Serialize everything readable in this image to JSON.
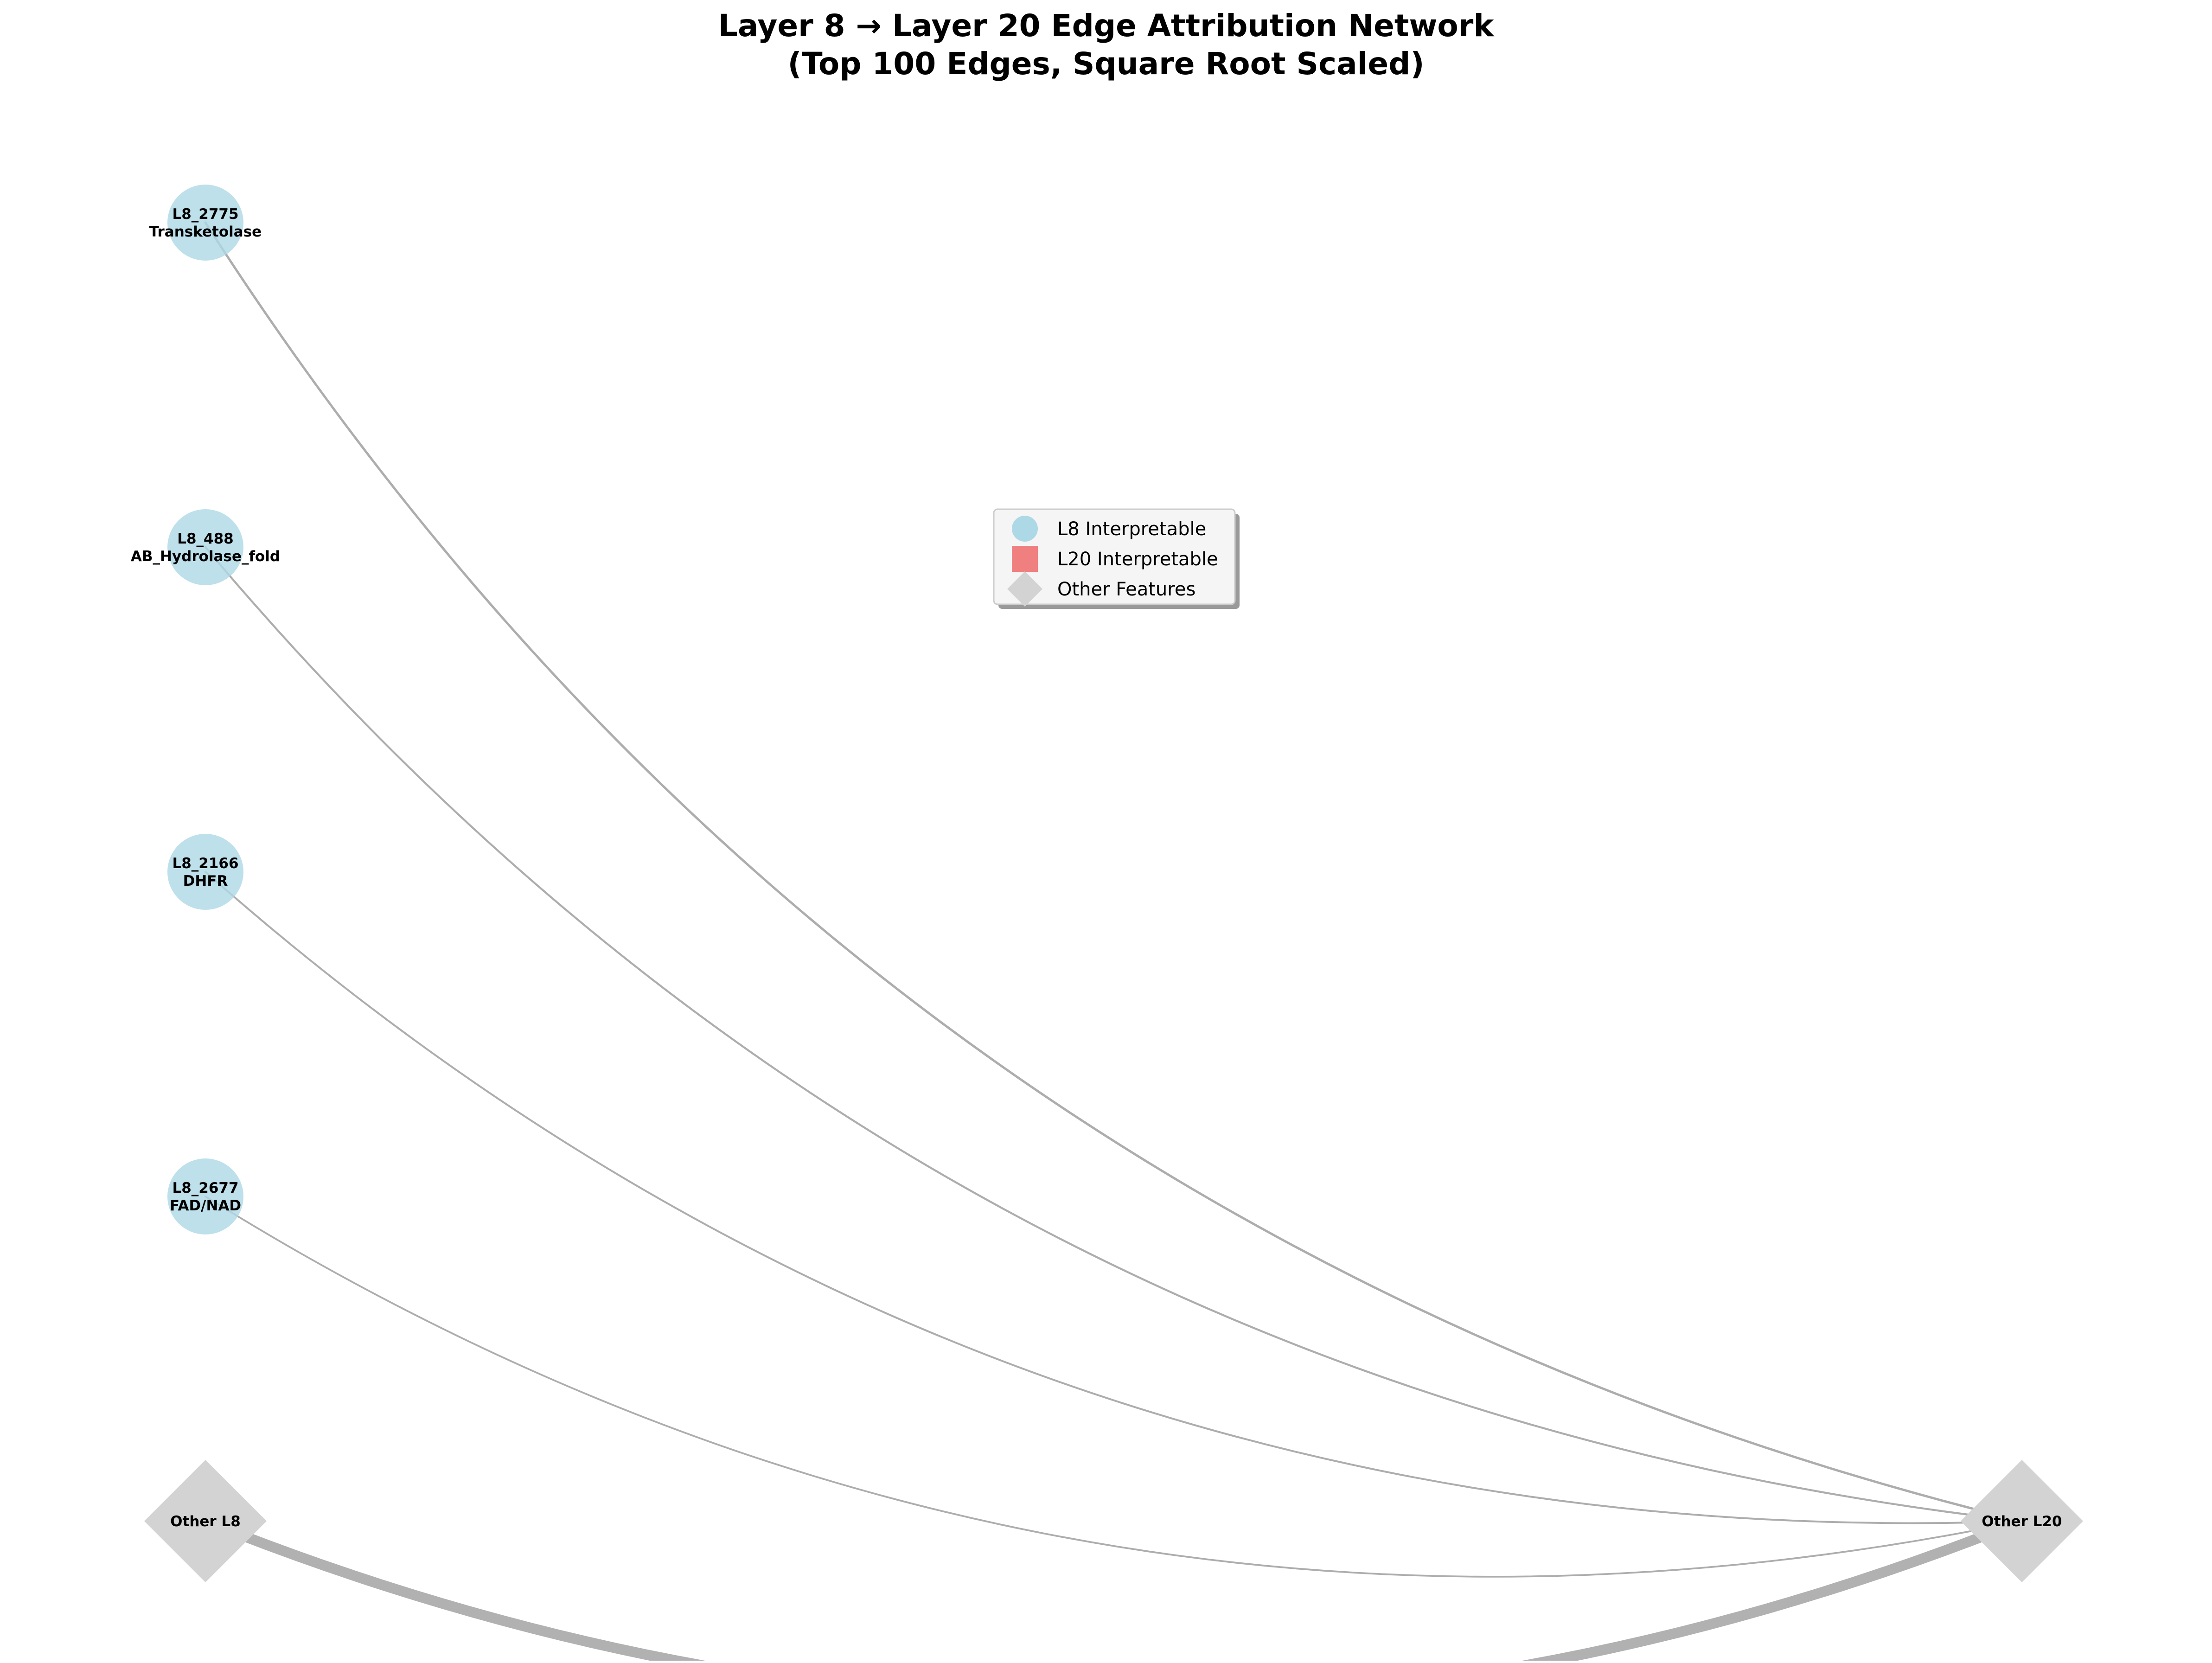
{
  "title": {
    "line1": "Layer 8 → Layer 20 Edge Attribution Network",
    "line2": "(Top 100 Edges, Square Root Scaled)"
  },
  "colors": {
    "l8_interpretable": "#add8e6",
    "l20_interpretable": "#f08080",
    "other_features": "#d3d3d3",
    "edge": "#a9a9a9",
    "legend_background": "#f5f5f5",
    "legend_border": "#cccccc"
  },
  "legend": {
    "items": [
      {
        "label": "L8 Interpretable",
        "shape": "circle",
        "color": "#add8e6"
      },
      {
        "label": "L20 Interpretable",
        "shape": "square",
        "color": "#f08080"
      },
      {
        "label": "Other Features",
        "shape": "diamond",
        "color": "#d3d3d3"
      }
    ]
  },
  "nodes": [
    {
      "id": "L8_2775",
      "name": "L8_2775",
      "desc": "Transketolase",
      "type": "l8_interpretable"
    },
    {
      "id": "L8_488",
      "name": "L8_488",
      "desc": "AB_Hydrolase_fold",
      "type": "l8_interpretable"
    },
    {
      "id": "L8_2166",
      "name": "L8_2166",
      "desc": "DHFR",
      "type": "l8_interpretable"
    },
    {
      "id": "L8_2677",
      "name": "L8_2677",
      "desc": "FAD/NAD",
      "type": "l8_interpretable"
    },
    {
      "id": "Other L8",
      "name": "Other L8",
      "desc": "",
      "type": "other"
    },
    {
      "id": "Other L20",
      "name": "Other L20",
      "desc": "",
      "type": "other"
    }
  ],
  "edges": [
    {
      "source": "L8_2775",
      "target": "Other L20",
      "weight": 1.0
    },
    {
      "source": "L8_488",
      "target": "Other L20",
      "weight": 0.85
    },
    {
      "source": "L8_2166",
      "target": "Other L20",
      "weight": 0.8
    },
    {
      "source": "L8_2677",
      "target": "Other L20",
      "weight": 0.75
    },
    {
      "source": "Other L8",
      "target": "Other L20",
      "weight": 4.5
    }
  ]
}
